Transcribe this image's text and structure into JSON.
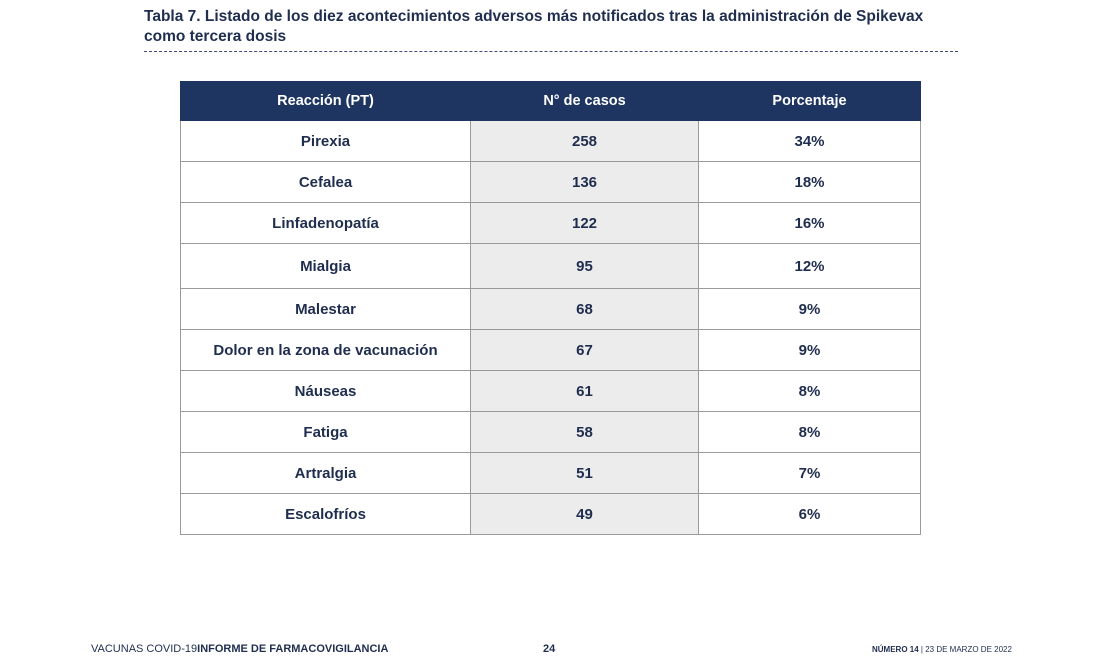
{
  "caption": {
    "title": "Tabla 7. Listado de los diez acontecimientos adversos más notificados tras la administración de Spikevax como tercera dosis"
  },
  "table": {
    "headers": [
      "Reacción (PT)",
      "N° de casos",
      "Porcentaje"
    ],
    "rows": [
      {
        "reaction": "Pirexia",
        "cases": "258",
        "percent": "34%"
      },
      {
        "reaction": "Cefalea",
        "cases": "136",
        "percent": "18%"
      },
      {
        "reaction": "Linfadenopatía",
        "cases": "122",
        "percent": "16%"
      },
      {
        "reaction": "Mialgia",
        "cases": "95",
        "percent": "12%"
      },
      {
        "reaction": "Malestar",
        "cases": "68",
        "percent": "9%"
      },
      {
        "reaction": "Dolor en la zona de vacunación",
        "cases": "67",
        "percent": "9%"
      },
      {
        "reaction": "Náuseas",
        "cases": "61",
        "percent": "8%"
      },
      {
        "reaction": "Fatiga",
        "cases": "58",
        "percent": "8%"
      },
      {
        "reaction": "Artralgia",
        "cases": "51",
        "percent": "7%"
      },
      {
        "reaction": "Escalofríos",
        "cases": "49",
        "percent": "6%"
      }
    ]
  },
  "footer": {
    "series_light": "VACUNAS COVID-19",
    "series_strong": "INFORME DE FARMACOVIGILANCIA",
    "page_number": "24",
    "issue_strong": "NÚMERO 14",
    "issue_separator": " | ",
    "issue_date": "23 DE MARZO DE 2022"
  }
}
